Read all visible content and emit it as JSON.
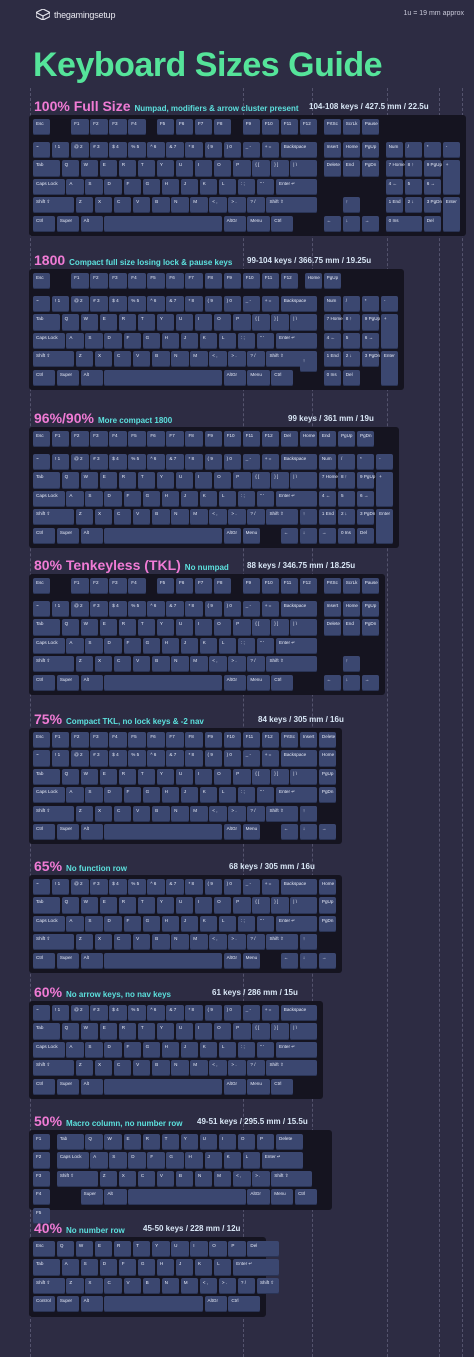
{
  "brand": {
    "name": "thegamingsetup",
    "logo_icon": "gamepad-logo-icon"
  },
  "approx_note": "1u = 19 mm approx",
  "title": "Keyboard Sizes Guide",
  "colors": {
    "title": "#55e49a",
    "size_label": "#f07bd5",
    "description": "#5ce0dd",
    "key": "#3b4770",
    "board": "#151420",
    "background": "#2d2c43"
  },
  "rows": {
    "fn": [
      "Esc",
      "F1",
      "F2",
      "F3",
      "F4",
      "F5",
      "F6",
      "F7",
      "F8",
      "F9",
      "F10",
      "F11",
      "F12"
    ],
    "num": [
      "~",
      "! 1",
      "@ 2",
      "# 3",
      "$ 4",
      "% 5",
      "^ 6",
      "& 7",
      "* 8",
      "( 9",
      ") 0",
      "_ -",
      "+ =",
      "Backspace"
    ],
    "tab": [
      "Tab",
      "Q",
      "W",
      "E",
      "R",
      "T",
      "Y",
      "U",
      "I",
      "O",
      "P",
      "{ [",
      "} ]",
      "| \\"
    ],
    "caps": [
      "Caps Lock",
      "A",
      "S",
      "D",
      "F",
      "G",
      "H",
      "J",
      "K",
      "L",
      ": ;",
      "\" '",
      "Enter ↵"
    ],
    "shift": [
      "Shift ⇧",
      "Z",
      "X",
      "C",
      "V",
      "B",
      "N",
      "M",
      "< ,",
      "> .",
      "? /",
      "Shift ⇧"
    ],
    "bottom": [
      "Ctrl",
      "Super",
      "Alt",
      "",
      "AltGr",
      "Menu",
      "Ctrl"
    ],
    "sys": [
      "PrtSc",
      "ScrLk",
      "Pause"
    ],
    "nav": [
      "Insert",
      "Home",
      "PgUp",
      "Delete",
      "End",
      "PgDn"
    ],
    "arrows": [
      "↑",
      "←",
      "↓",
      "→"
    ],
    "numpad": [
      "Num",
      "/",
      "*",
      "-",
      "7 Home",
      "8 ↑",
      "9 PgUp",
      "+",
      "4 ←",
      "5",
      "6 →",
      "1 End",
      "2 ↓",
      "3 PgDn",
      "Enter",
      "0 Ins",
      "Del"
    ],
    "extra_65": [
      "Home",
      "PgUp",
      "PgDn",
      "End"
    ],
    "macro": [
      "F1",
      "F2",
      "F3",
      "F4",
      "F5"
    ],
    "tab_40": [
      "Esc",
      "Q",
      "W",
      "E",
      "R",
      "T",
      "Y",
      "U",
      "I",
      "O",
      "P",
      "Del"
    ],
    "caps_40": [
      "Tab",
      "A",
      "S",
      "D",
      "F",
      "G",
      "H",
      "J",
      "K",
      "L",
      "Enter ↵"
    ],
    "shift_40": [
      "Shift ⇧",
      "Z",
      "X",
      "C",
      "V",
      "B",
      "N",
      "M",
      "< ,",
      "> .",
      "? /",
      "Shift ⇧"
    ],
    "bottom_40": [
      "Control",
      "Super",
      "Alt",
      "",
      "AltGr",
      "Ctrl"
    ],
    "tab_50": [
      "Tab",
      "Q",
      "W",
      "E",
      "R",
      "T",
      "Y",
      "U",
      "I",
      "O",
      "P",
      "Delete"
    ],
    "caps_50": [
      "Caps Lock",
      "A",
      "S",
      "D",
      "F",
      "G",
      "H",
      "J",
      "K",
      "L",
      "Enter ↵"
    ],
    "shift_50": [
      "Shift ⇧",
      "Z",
      "X",
      "C",
      "V",
      "B",
      "N",
      "M",
      "< ,",
      "> .",
      "Shift ⇧"
    ],
    "bottom_50": [
      "Super",
      "Alt",
      "",
      "AltGr",
      "Menu",
      "Ctrl"
    ]
  },
  "sections": [
    {
      "size": "100% Full Size",
      "description": "Numpad, modifiers & arrow cluster present",
      "spec": "104-108 keys / 427.5 mm / 22.5u"
    },
    {
      "size": "1800",
      "description": "Compact full size losing lock & pause keys",
      "spec": "99-104 keys / 366.75 mm / 19.25u"
    },
    {
      "size": "96%/90%",
      "description": "More compact 1800",
      "spec": "99 keys / 361 mm / 19u"
    },
    {
      "size": "80% Tenkeyless (TKL)",
      "description": "No numpad",
      "spec": "88 keys / 346.75 mm / 18.25u"
    },
    {
      "size": "75%",
      "description": "Compact TKL, no lock keys & -2 nav",
      "spec": "84 keys / 305 mm / 16u"
    },
    {
      "size": "65%",
      "description": "No function row",
      "spec": "68 keys / 305 mm / 16u"
    },
    {
      "size": "60%",
      "description": "No arrow keys, no nav keys",
      "spec": "61 keys / 286 mm / 15u"
    },
    {
      "size": "50%",
      "description": "Macro column, no number row",
      "spec": "49-51 keys / 295.5 mm / 15.5u"
    },
    {
      "size": "40%",
      "description": "No number row",
      "spec": "45-50 keys / 228 mm / 12u"
    }
  ]
}
